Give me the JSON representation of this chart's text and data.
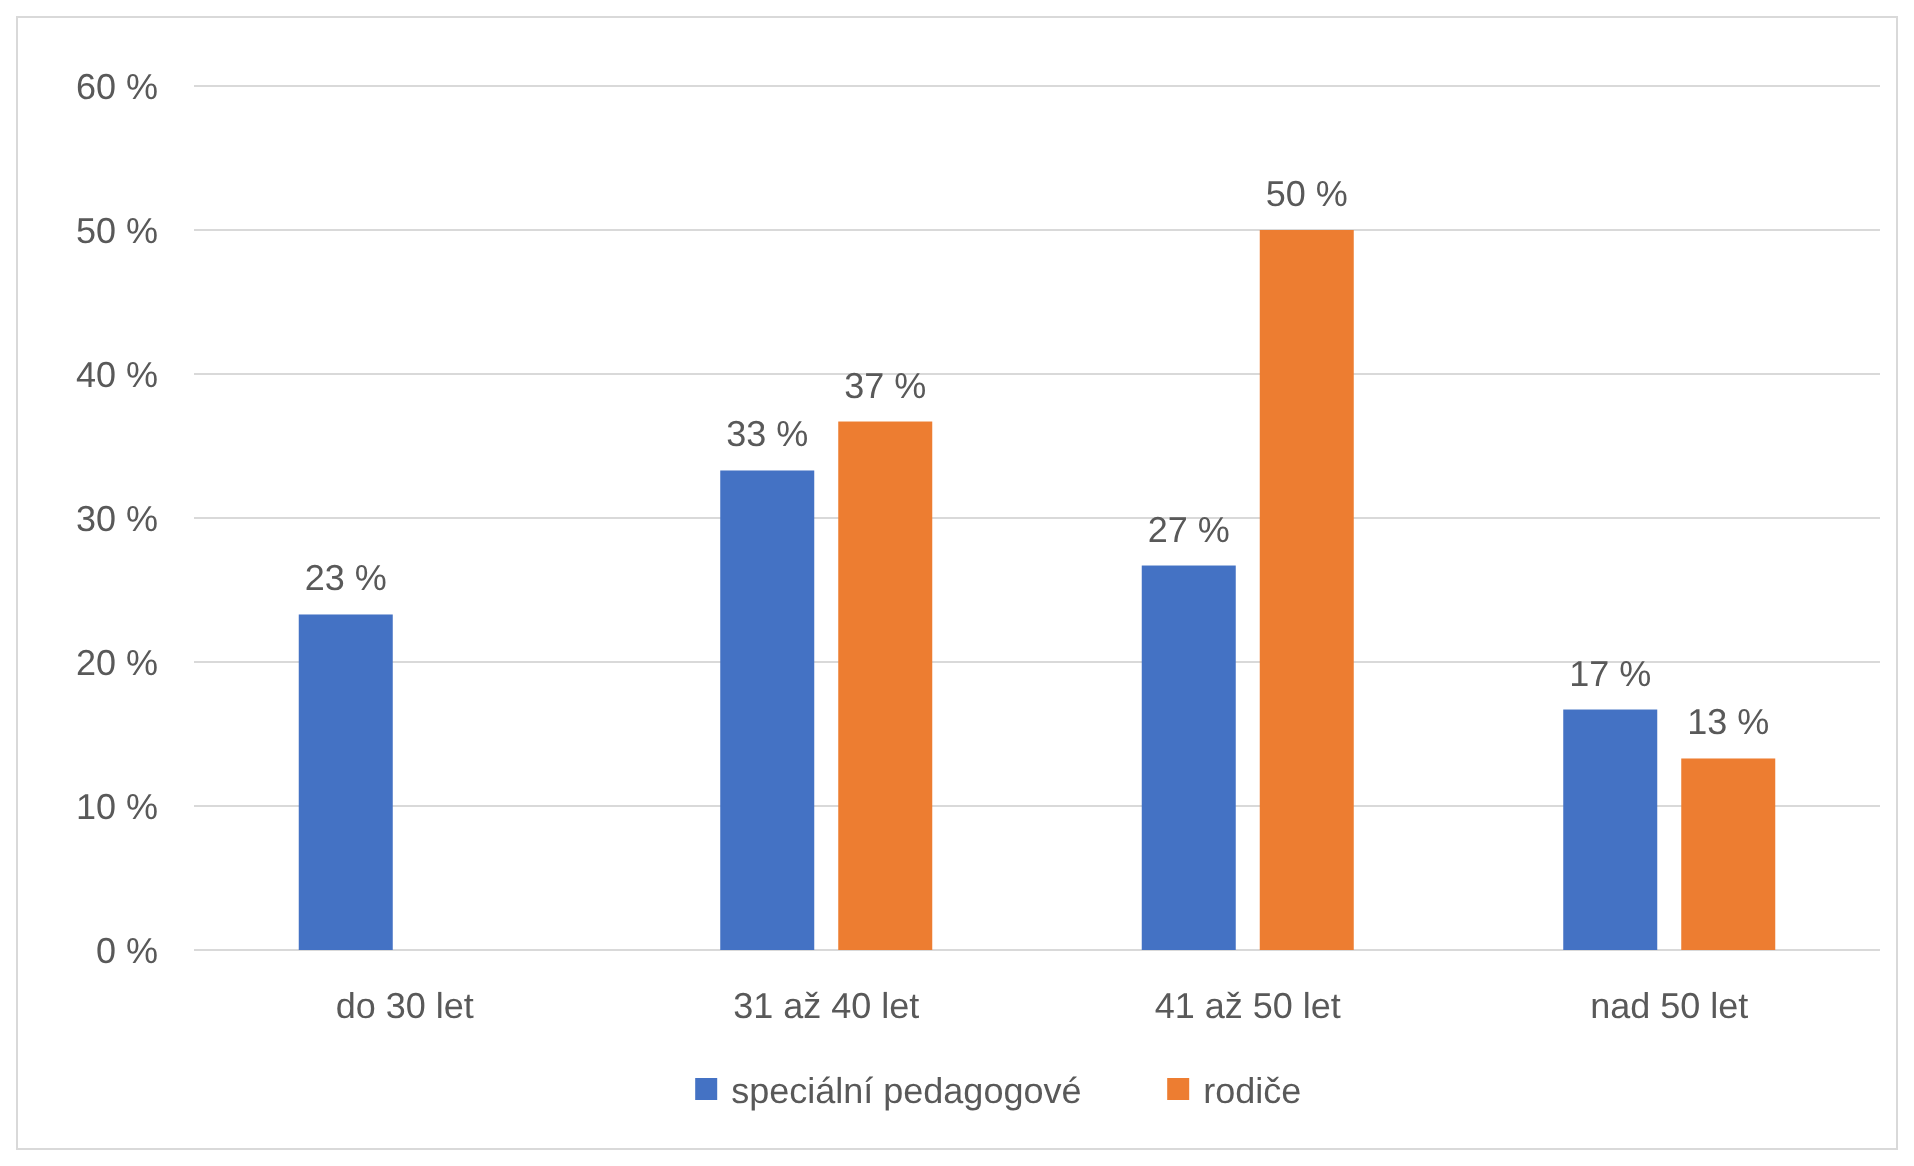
{
  "chart_data": {
    "type": "bar",
    "categories": [
      "do 30 let",
      "31 až 40 let",
      "41 až 50 let",
      "nad 50 let"
    ],
    "series": [
      {
        "name": "speciální pedagogové",
        "color": "#4472c4",
        "values": [
          23.3,
          33.3,
          26.7,
          16.7
        ],
        "value_labels": [
          "23 %",
          "33 %",
          "27 %",
          "17 %"
        ]
      },
      {
        "name": "rodiče",
        "color": "#ed7d31",
        "values": [
          null,
          36.7,
          50,
          13.3
        ],
        "value_labels": [
          null,
          "37 %",
          "50 %",
          "13 %"
        ]
      }
    ],
    "ylim": [
      0,
      60
    ],
    "yticks": [
      {
        "value": 0,
        "label": "0 %"
      },
      {
        "value": 10,
        "label": "10 %"
      },
      {
        "value": 20,
        "label": "20 %"
      },
      {
        "value": 30,
        "label": "30 %"
      },
      {
        "value": 40,
        "label": "40 %"
      },
      {
        "value": 50,
        "label": "50 %"
      },
      {
        "value": 60,
        "label": "60 %"
      }
    ],
    "grid": "y",
    "legend": "bottom"
  }
}
